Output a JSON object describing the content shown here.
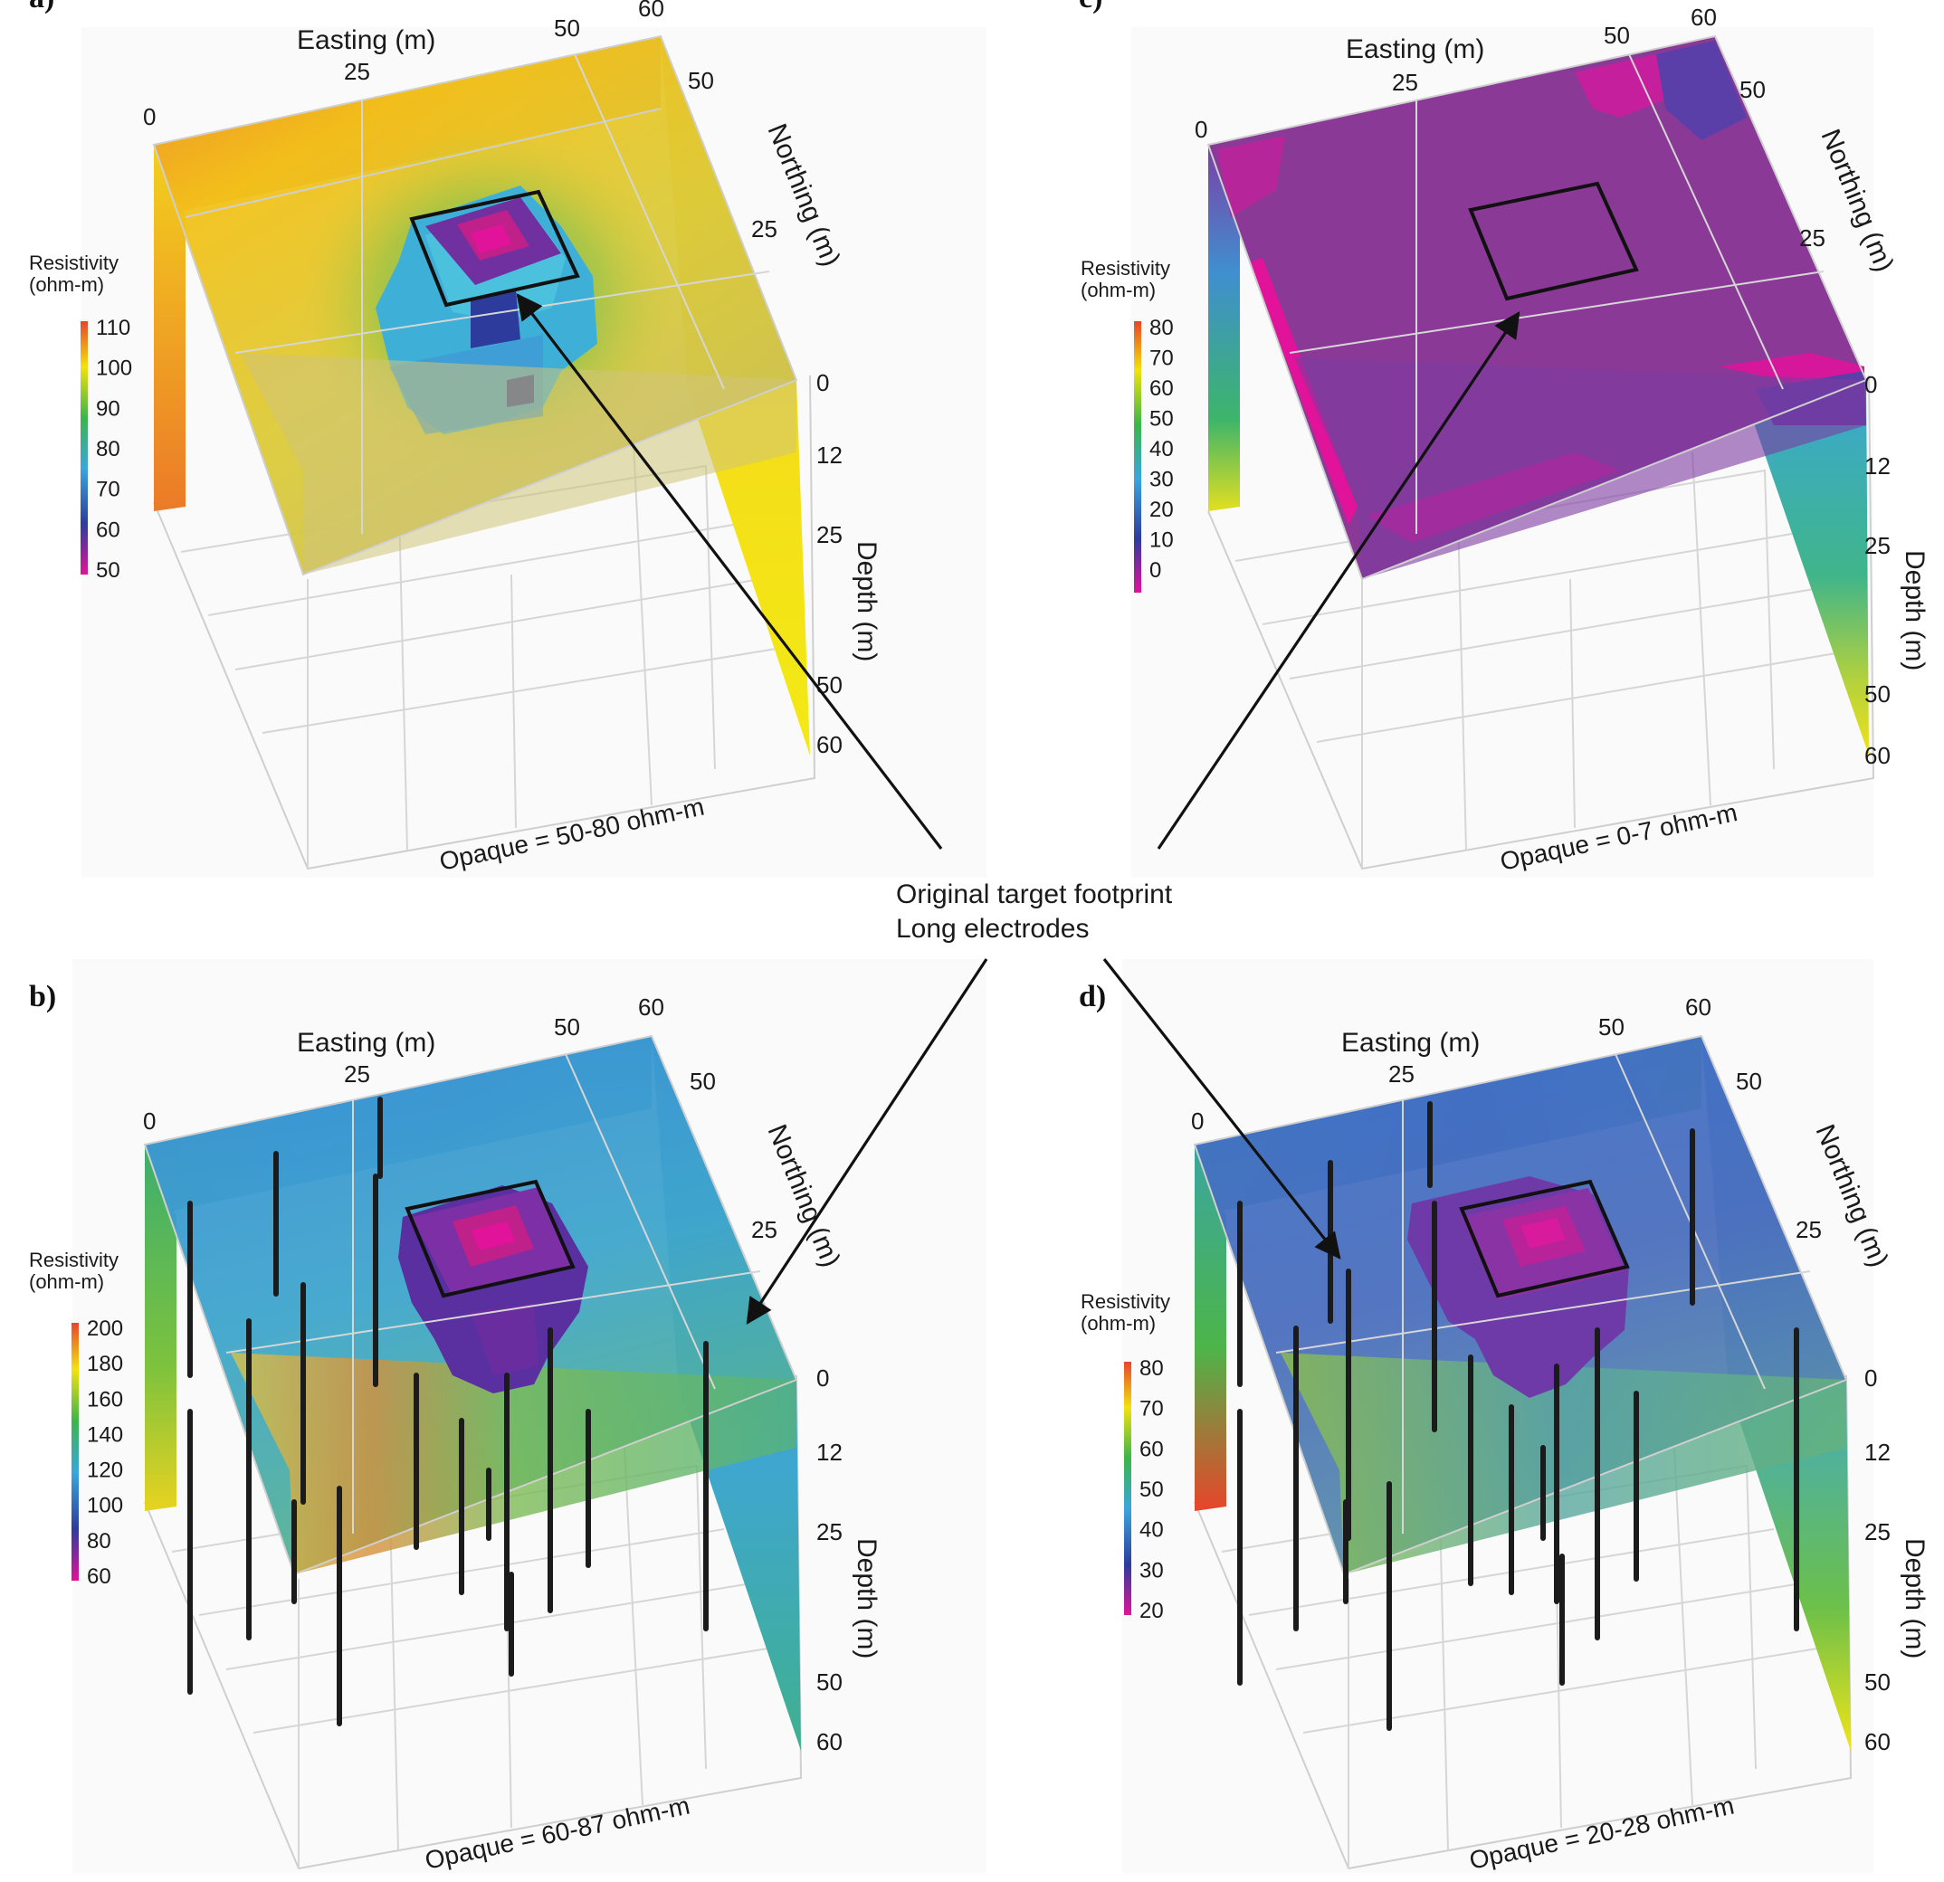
{
  "panels": [
    {
      "id": "a",
      "label": "a)",
      "easting_label": "Easting (m)",
      "northing_label": "Northing (m)",
      "depth_label": "Depth (m)",
      "easting_ticks": [
        "0",
        "25",
        "50",
        "60"
      ],
      "northing_ticks": [
        "50",
        "25"
      ],
      "depth_ticks": [
        "0",
        "12",
        "25",
        "50",
        "60"
      ],
      "colorbar_title": [
        "Resistivity",
        "(ohm-m)"
      ],
      "colorbar_ticks": [
        "110",
        "100",
        "90",
        "80",
        "70",
        "60",
        "50"
      ],
      "opaque_caption": "Opaque = 50-80 ohm-m",
      "has_electrodes": false
    },
    {
      "id": "b",
      "label": "b)",
      "easting_label": "Easting (m)",
      "northing_label": "Northing (m)",
      "depth_label": "Depth (m)",
      "easting_ticks": [
        "0",
        "25",
        "50",
        "60"
      ],
      "northing_ticks": [
        "50",
        "25"
      ],
      "depth_ticks": [
        "0",
        "12",
        "25",
        "50",
        "60"
      ],
      "colorbar_title": [
        "Resistivity",
        "(ohm-m)"
      ],
      "colorbar_ticks": [
        "200",
        "180",
        "160",
        "140",
        "120",
        "100",
        "80",
        "60"
      ],
      "opaque_caption": "Opaque = 60-87 ohm-m",
      "has_electrodes": true
    },
    {
      "id": "c",
      "label": "c)",
      "easting_label": "Easting (m)",
      "northing_label": "Northing (m)",
      "depth_label": "Depth (m)",
      "easting_ticks": [
        "0",
        "25",
        "50",
        "60"
      ],
      "northing_ticks": [
        "50",
        "25"
      ],
      "depth_ticks": [
        "0",
        "12",
        "25",
        "50",
        "60"
      ],
      "colorbar_title": [
        "Resistivity",
        "(ohm-m)"
      ],
      "colorbar_ticks": [
        "80",
        "70",
        "60",
        "50",
        "40",
        "30",
        "20",
        "10",
        "0"
      ],
      "opaque_caption": "Opaque = 0-7 ohm-m",
      "has_electrodes": false
    },
    {
      "id": "d",
      "label": "d)",
      "easting_label": "Easting (m)",
      "northing_label": "Northing (m)",
      "depth_label": "Depth (m)",
      "easting_ticks": [
        "0",
        "25",
        "50",
        "60"
      ],
      "northing_ticks": [
        "50",
        "25"
      ],
      "depth_ticks": [
        "0",
        "12",
        "25",
        "50",
        "60"
      ],
      "colorbar_title": [
        "Resistivity",
        "(ohm-m)"
      ],
      "colorbar_ticks": [
        "80",
        "70",
        "60",
        "50",
        "40",
        "30",
        "20"
      ],
      "opaque_caption": "Opaque = 20-28 ohm-m",
      "has_electrodes": true
    }
  ],
  "center_legend": {
    "line1": "Original target footprint",
    "line2": "Long electrodes"
  },
  "colors": {
    "ramp_high": "#e8452a",
    "ramp_yellow": "#f2e20f",
    "ramp_green": "#3cb54a",
    "ramp_cyan": "#3aa6dc",
    "ramp_blue": "#2d3c9c",
    "ramp_low": "#e0139a"
  }
}
